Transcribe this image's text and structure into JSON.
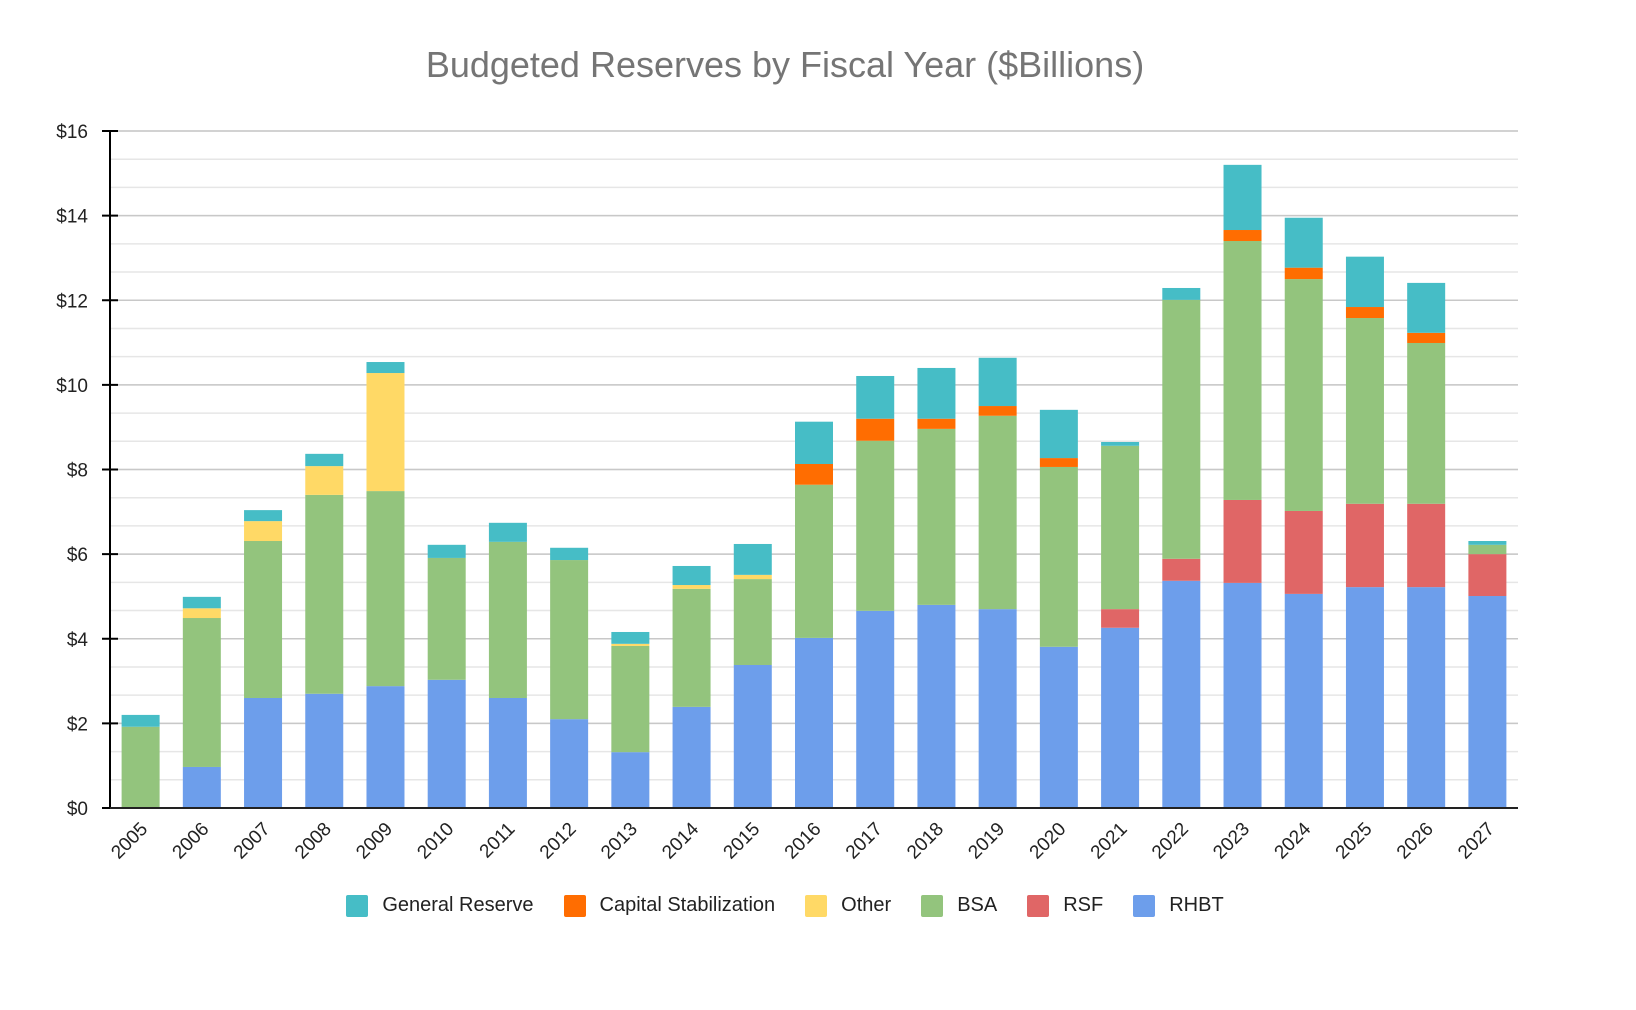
{
  "chart_data": {
    "type": "bar",
    "stacked": true,
    "title": "Budgeted Reserves by Fiscal Year ($Billions)",
    "xlabel": "",
    "ylabel": "",
    "ylim": [
      0,
      16
    ],
    "yticks": [
      "$0",
      "$2",
      "$4",
      "$6",
      "$8",
      "$10",
      "$12",
      "$14",
      "$16"
    ],
    "grid": true,
    "legend_position": "bottom",
    "categories": [
      "2005",
      "2006",
      "2007",
      "2008",
      "2009",
      "2010",
      "2011",
      "2012",
      "2013",
      "2014",
      "2015",
      "2016",
      "2017",
      "2018",
      "2019",
      "2020",
      "2021",
      "2022",
      "2023",
      "2024",
      "2025",
      "2026",
      "2027"
    ],
    "series": [
      {
        "name": "RHBT",
        "color": "#6d9eeb",
        "values": [
          0,
          0.97,
          2.6,
          2.7,
          2.88,
          3.03,
          2.6,
          2.1,
          1.32,
          2.39,
          3.38,
          4.02,
          4.66,
          4.8,
          4.7,
          3.81,
          4.26,
          5.37,
          5.32,
          5.06,
          5.22,
          5.22,
          5.01
        ]
      },
      {
        "name": "RSF",
        "color": "#e06666",
        "values": [
          0,
          0,
          0,
          0,
          0,
          0,
          0,
          0,
          0,
          0,
          0,
          0,
          0,
          0,
          0,
          0,
          0.44,
          0.52,
          1.96,
          1.96,
          1.97,
          1.97,
          0.99
        ]
      },
      {
        "name": "BSA",
        "color": "#93c47d",
        "values": [
          1.92,
          3.52,
          3.71,
          4.7,
          4.61,
          2.88,
          3.69,
          3.76,
          2.51,
          2.79,
          2.03,
          3.62,
          4.02,
          4.16,
          4.57,
          4.25,
          3.86,
          6.12,
          6.12,
          5.48,
          4.39,
          3.8,
          0.22
        ]
      },
      {
        "name": "Other",
        "color": "#ffd966",
        "values": [
          0,
          0.23,
          0.47,
          0.68,
          2.79,
          0,
          0,
          0,
          0.05,
          0.09,
          0.1,
          0,
          0,
          0,
          0,
          0,
          0,
          0,
          0,
          0,
          0,
          0,
          0
        ]
      },
      {
        "name": "Capital Stabilization",
        "color": "#ff6d01",
        "values": [
          0,
          0,
          0,
          0,
          0,
          0,
          0,
          0,
          0,
          0,
          0,
          0.49,
          0.52,
          0.24,
          0.23,
          0.21,
          0,
          0,
          0.26,
          0.27,
          0.26,
          0.24,
          0
        ]
      },
      {
        "name": "General Reserve",
        "color": "#46bdc6",
        "values": [
          0.28,
          0.27,
          0.26,
          0.29,
          0.26,
          0.31,
          0.45,
          0.29,
          0.28,
          0.45,
          0.73,
          1.0,
          1.01,
          1.2,
          1.14,
          1.14,
          0.09,
          0.28,
          1.54,
          1.18,
          1.19,
          1.18,
          0.09
        ]
      }
    ],
    "legend_order": [
      "General Reserve",
      "Capital Stabilization",
      "Other",
      "BSA",
      "RSF",
      "RHBT"
    ]
  }
}
